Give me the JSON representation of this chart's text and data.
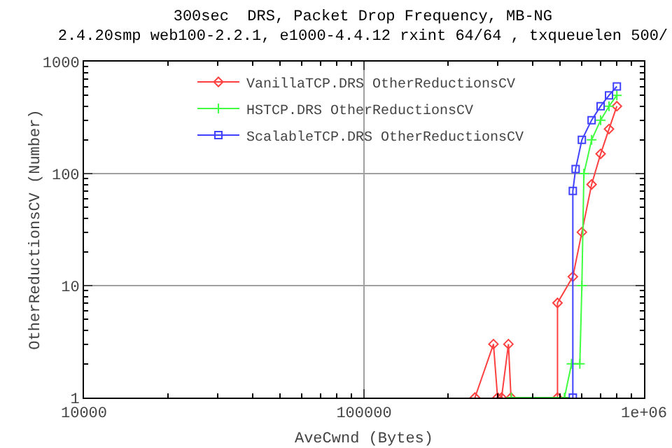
{
  "chart_data": {
    "type": "line",
    "title": "300sec  DRS, Packet Drop Frequency, MB-NG",
    "subtitle": "2.4.20smp web100-2.2.1, e1000-4.4.12 rxint 64/64 , txqueuelen 500/",
    "xlabel": "AveCwnd (Bytes)",
    "ylabel": "OtherReductionsCV (Number)",
    "log": "xy",
    "grid": true,
    "legend": "top right",
    "xlim": [
      10000,
      1000000
    ],
    "xticks": [
      10000,
      100000,
      {
        "value": 1000000,
        "label": "1e+06"
      }
    ],
    "ylim": [
      1,
      1000
    ],
    "yticks": [
      1,
      10,
      100,
      1000
    ],
    "series": [
      {
        "name": "VanillaTCP.DRS OtherReductionsCV",
        "color": "#ff4040",
        "marker": "diamond",
        "x": [
          249000,
          290000,
          300000,
          310000,
          328000,
          335000,
          491000,
          491000,
          557000,
          600000,
          650000,
          700000,
          750000,
          800000
        ],
        "values": [
          1,
          3,
          1,
          1,
          3,
          1,
          1,
          7,
          12,
          30,
          80,
          150,
          250,
          400
        ]
      },
      {
        "name": "HSTCP.DRS OtherReductionsCV",
        "color": "#40ff40",
        "marker": "cross",
        "x": [
          336000,
          520000,
          551000,
          590000,
          600000,
          610000,
          650000,
          700000,
          750000,
          800000
        ],
        "values": [
          1,
          1,
          2,
          2,
          10,
          100,
          200,
          300,
          400,
          500
        ]
      },
      {
        "name": "ScalableTCP.DRS OtherReductionsCV",
        "color": "#4040ff",
        "marker": "square",
        "x": [
          557000,
          557000,
          570000,
          600000,
          650000,
          700000,
          750000,
          800000
        ],
        "values": [
          1,
          70,
          110,
          200,
          300,
          400,
          500,
          600
        ]
      }
    ]
  }
}
